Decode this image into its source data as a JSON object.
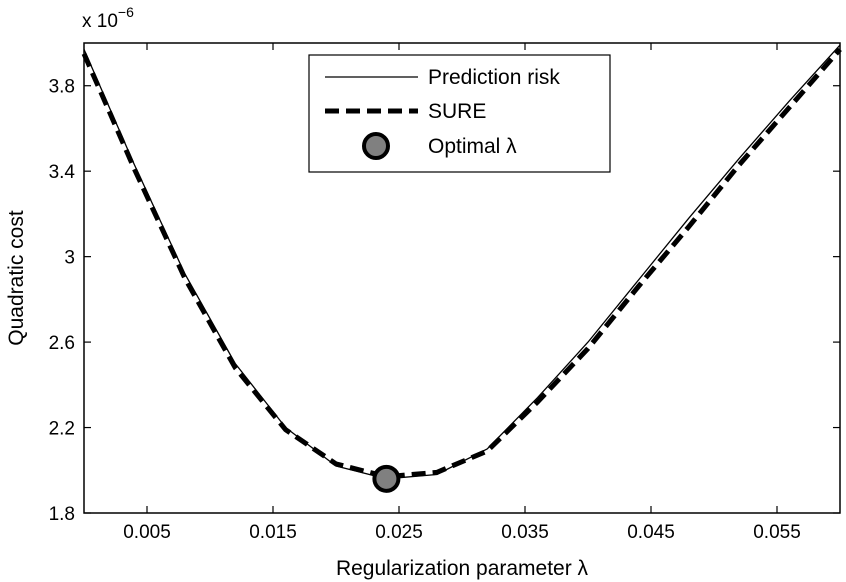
{
  "chart_data": {
    "type": "line",
    "xlabel": "Regularization parameter λ",
    "ylabel": "Quadratic cost",
    "y_multiplier": {
      "base": "x 10",
      "exponent": "−6"
    },
    "xlim": [
      0,
      0.06
    ],
    "ylim": [
      1.8,
      4.0
    ],
    "x_ticks": [
      0.005,
      0.015,
      0.025,
      0.035,
      0.045,
      0.055
    ],
    "x_tick_labels": [
      "0.005",
      "0.015",
      "0.025",
      "0.035",
      "0.045",
      "0.055"
    ],
    "y_ticks": [
      1.8,
      2.2,
      2.6,
      3.0,
      3.4,
      3.8
    ],
    "y_tick_labels": [
      "1.8",
      "2.2",
      "2.6",
      "3",
      "3.4",
      "3.8"
    ],
    "grid": false,
    "legend_position": "top-center",
    "series": [
      {
        "name": "Prediction risk",
        "style": "thin-solid",
        "color": "#000000",
        "x": [
          0,
          0.004,
          0.008,
          0.012,
          0.016,
          0.02,
          0.024,
          0.028,
          0.032,
          0.036,
          0.04,
          0.044,
          0.048,
          0.052,
          0.056,
          0.06
        ],
        "y": [
          3.97,
          3.43,
          2.92,
          2.5,
          2.2,
          2.02,
          1.96,
          1.98,
          2.1,
          2.34,
          2.6,
          2.89,
          3.18,
          3.46,
          3.73,
          3.99
        ]
      },
      {
        "name": "SURE",
        "style": "thick-dashed",
        "color": "#000000",
        "x": [
          0,
          0.004,
          0.008,
          0.012,
          0.016,
          0.02,
          0.024,
          0.028,
          0.032,
          0.036,
          0.04,
          0.044,
          0.048,
          0.052,
          0.056,
          0.06
        ],
        "y": [
          3.95,
          3.41,
          2.9,
          2.48,
          2.19,
          2.03,
          1.97,
          1.99,
          2.09,
          2.32,
          2.57,
          2.86,
          3.14,
          3.43,
          3.7,
          3.97
        ]
      }
    ],
    "optimal_point": {
      "name": "Optimal λ",
      "x": 0.024,
      "y": 1.96,
      "color": "#808080"
    }
  }
}
